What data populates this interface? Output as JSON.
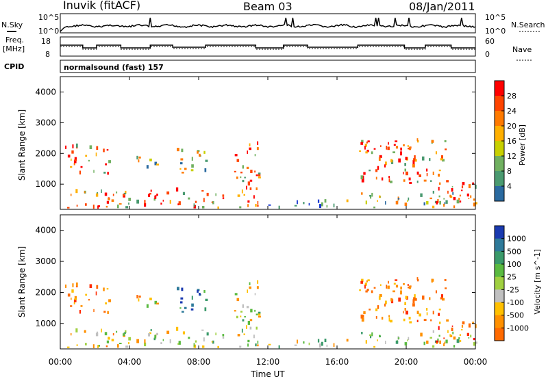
{
  "header": {
    "station": "Inuvik (fitACF)",
    "beam": "Beam 03",
    "date": "08/Jan/2011"
  },
  "noise_panel": {
    "left_label": "N.Sky",
    "right_label": "N.Search",
    "left_ticks": [
      "10^5",
      "10^0"
    ],
    "right_ticks": [
      "10^5",
      "10^0"
    ]
  },
  "freq_panel": {
    "left_label_1": "Freq.",
    "left_label_2": "[MHz]",
    "right_label": "Nave",
    "left_ticks": [
      "18",
      "8"
    ],
    "right_ticks": [
      "60",
      "0"
    ]
  },
  "cpid_panel": {
    "label": "CPID",
    "text": "normalsound (fast) 157"
  },
  "range_panels": {
    "ylabel": "Slant Range [km]",
    "yticks": [
      "1000",
      "2000",
      "3000",
      "4000"
    ],
    "xlabel": "Time UT",
    "xticks": [
      "00:00",
      "04:00",
      "08:00",
      "12:00",
      "16:00",
      "20:00",
      "00:00"
    ]
  },
  "power_colorbar": {
    "label": "Power [dB]",
    "ticks": [
      "28",
      "24",
      "20",
      "16",
      "12",
      "8",
      "4"
    ],
    "colors": [
      "#ff0000",
      "#ff4400",
      "#ff7a00",
      "#ffb000",
      "#c8d000",
      "#70b060",
      "#4a9a70",
      "#2a6aa0",
      "#1a3ad0",
      "#0000ff"
    ]
  },
  "velocity_colorbar": {
    "label": "Velocity [m s^-1]",
    "ticks": [
      "1000",
      "500",
      "100",
      "25",
      "-25",
      "-100",
      "-500",
      "-1000"
    ],
    "colors": [
      "#1a3ab0",
      "#2e7a9a",
      "#3a9a6a",
      "#5aba40",
      "#a0d040",
      "#c0c0c0",
      "#ffc000",
      "#ff9000",
      "#ff6a00",
      "#ff2a00",
      "#ff0000"
    ]
  },
  "chart_data": {
    "type": "heatmap",
    "title": "Inuvik (fitACF)  Beam 03  08/Jan/2011",
    "xlabel": "Time UT",
    "ylabel": "Slant Range [km]",
    "x_ticks": [
      "00:00",
      "04:00",
      "08:00",
      "12:00",
      "16:00",
      "20:00",
      "00:00"
    ],
    "ylim": [
      180,
      4500
    ],
    "xlim_hours": [
      0,
      24
    ],
    "power_colorbar_db": [
      4,
      8,
      12,
      16,
      20,
      24,
      28
    ],
    "velocity_colorbar_ms": [
      -1000,
      -500,
      -100,
      -25,
      25,
      100,
      500,
      1000
    ],
    "freq_range_mhz": [
      8,
      18
    ],
    "nave_range": [
      0,
      60
    ],
    "cpid": "normalsound (fast) 157",
    "scatter_regions": [
      {
        "t_start": 0.0,
        "t_end": 3.2,
        "r_min": 200,
        "r_max": 750,
        "power": "high",
        "velocity": "low-negative"
      },
      {
        "t_start": 0.2,
        "t_end": 2.8,
        "r_min": 1300,
        "r_max": 2200,
        "power": "high",
        "velocity": "-100 to -500"
      },
      {
        "t_start": 4.4,
        "t_end": 5.8,
        "r_min": 1500,
        "r_max": 1950,
        "power": "medium",
        "velocity": "-100"
      },
      {
        "t_start": 6.7,
        "t_end": 8.4,
        "r_min": 1300,
        "r_max": 2200,
        "power": "medium",
        "velocity": "+100 to +500"
      },
      {
        "t_start": 3.2,
        "t_end": 9.5,
        "r_min": 200,
        "r_max": 800,
        "power": "high",
        "velocity": "low"
      },
      {
        "t_start": 10.0,
        "t_end": 11.5,
        "r_min": 200,
        "r_max": 2400,
        "power": "high",
        "velocity": "low"
      },
      {
        "t_start": 11.5,
        "t_end": 16.5,
        "r_min": 180,
        "r_max": 400,
        "power": "low",
        "velocity": "low"
      },
      {
        "t_start": 16.5,
        "t_end": 24.0,
        "r_min": 200,
        "r_max": 700,
        "power": "medium",
        "velocity": "low"
      },
      {
        "t_start": 17.2,
        "t_end": 22.5,
        "r_min": 1000,
        "r_max": 2400,
        "power": "high",
        "velocity": "-100 to -500"
      },
      {
        "t_start": 21.5,
        "t_end": 24.0,
        "r_min": 300,
        "r_max": 1000,
        "power": "high",
        "velocity": "-25 to -100"
      }
    ]
  }
}
